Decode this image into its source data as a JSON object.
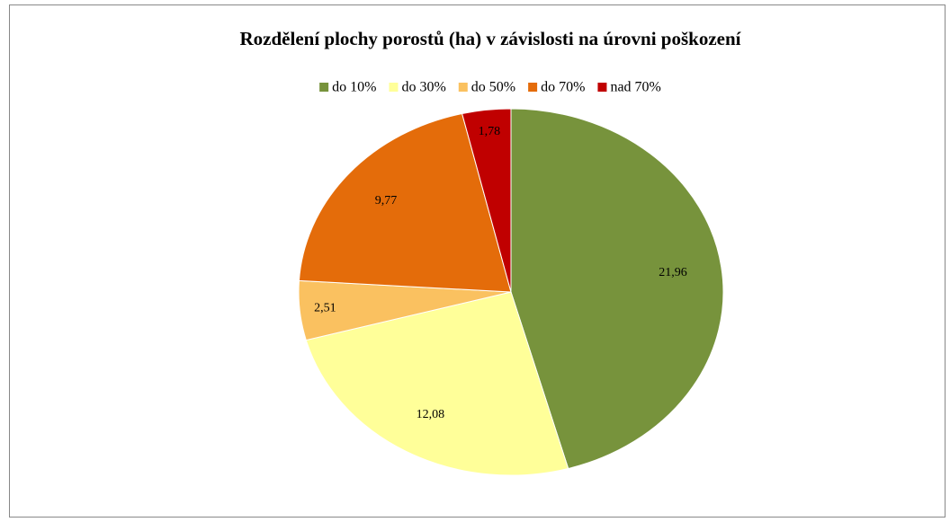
{
  "chart_data": {
    "type": "pie",
    "title": "Rozdělení plochy porostů (ha) v závislosti na úrovni poškození",
    "categories": [
      "do 10%",
      "do 30%",
      "do 50%",
      "do 70%",
      "nad 70%"
    ],
    "values": [
      21.96,
      12.08,
      2.51,
      9.77,
      1.78
    ],
    "value_labels": [
      "21,96",
      "12,08",
      "2,51",
      "9,77",
      "1,78"
    ],
    "colors": [
      "#77933c",
      "#ffff99",
      "#fac160",
      "#e46c0a",
      "#c00000"
    ],
    "legend": "top"
  }
}
